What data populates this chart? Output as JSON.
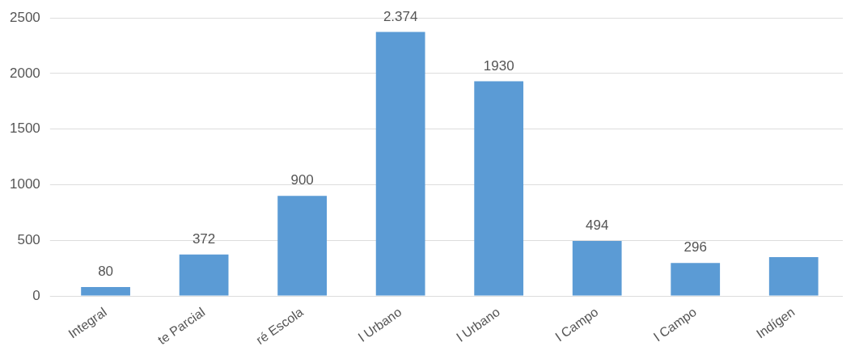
{
  "chart_data": {
    "type": "bar",
    "categories": [
      "Integral",
      "te Parcial",
      "ré Escola",
      "l Urbano",
      "l Urbano",
      "l Campo",
      "l Campo",
      "Indígen"
    ],
    "values": [
      80,
      372,
      900,
      2374,
      1930,
      494,
      296,
      350
    ],
    "value_labels": [
      "80",
      "372",
      "900",
      "2.374",
      "1930",
      "494",
      "296",
      null
    ],
    "color": "#5b9bd5",
    "ylim": [
      0,
      2500
    ],
    "yticks": [
      0,
      500,
      1000,
      1500,
      2000,
      2500
    ],
    "grid": "y",
    "legend": false
  }
}
